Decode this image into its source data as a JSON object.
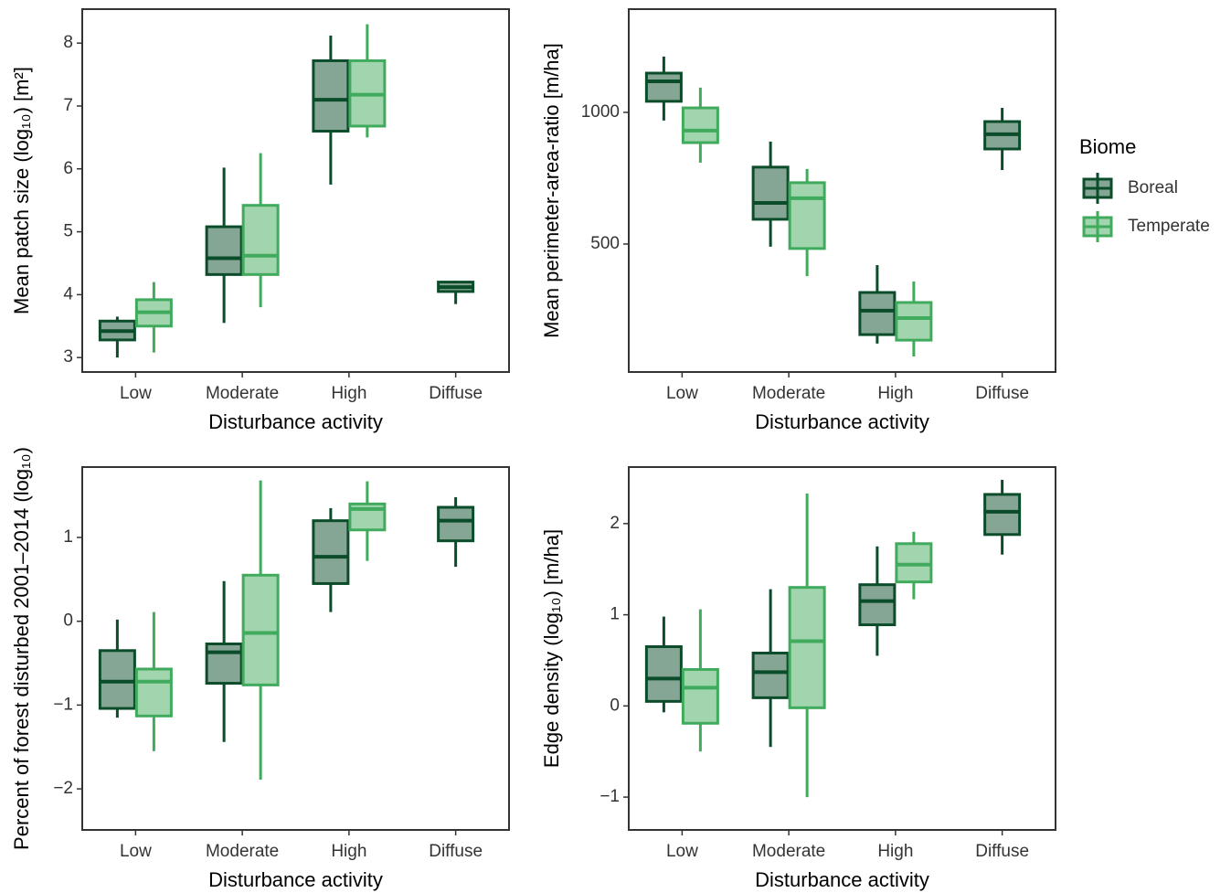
{
  "chart_data": [
    {
      "type": "box",
      "y_label": "Mean patch size (log₁₀) [m²]",
      "x_label": "Disturbance activity",
      "categories": [
        "Low",
        "Moderate",
        "High",
        "Diffuse"
      ],
      "ylim": [
        2.77,
        8.54
      ],
      "yticks": [
        3,
        4,
        5,
        6,
        7,
        8
      ],
      "series": [
        {
          "name": "Boreal",
          "color": "#0b4d2a",
          "boxes": [
            {
              "min": 3.0,
              "q1": 3.28,
              "median": 3.42,
              "q3": 3.58,
              "max": 3.65
            },
            {
              "min": 3.55,
              "q1": 4.32,
              "median": 4.58,
              "q3": 5.08,
              "max": 6.02
            },
            {
              "min": 5.75,
              "q1": 6.6,
              "median": 7.1,
              "q3": 7.72,
              "max": 8.12
            },
            {
              "min": 3.85,
              "q1": 4.05,
              "median": 4.12,
              "q3": 4.2,
              "max": 4.22
            }
          ]
        },
        {
          "name": "Temperate",
          "color": "#41ab5d",
          "boxes": [
            {
              "min": 3.08,
              "q1": 3.5,
              "median": 3.72,
              "q3": 3.92,
              "max": 4.2
            },
            {
              "min": 3.8,
              "q1": 4.32,
              "median": 4.62,
              "q3": 5.42,
              "max": 6.25
            },
            {
              "min": 6.5,
              "q1": 6.68,
              "median": 7.18,
              "q3": 7.72,
              "max": 8.3
            },
            null
          ]
        }
      ]
    },
    {
      "type": "box",
      "y_label": "Mean perimeter-area-ratio [m/ha]",
      "x_label": "Disturbance activity",
      "categories": [
        "Low",
        "Moderate",
        "High",
        "Diffuse"
      ],
      "ylim": [
        14,
        1392
      ],
      "yticks": [
        500,
        1000
      ],
      "legend_title": "Biome",
      "series": [
        {
          "name": "Boreal",
          "color": "#0b4d2a",
          "boxes": [
            {
              "min": 969,
              "q1": 1042,
              "median": 1118,
              "q3": 1149,
              "max": 1212
            },
            {
              "min": 490,
              "q1": 594,
              "median": 656,
              "q3": 792,
              "max": 889
            },
            {
              "min": 122,
              "q1": 156,
              "median": 247,
              "q3": 316,
              "max": 420
            },
            {
              "min": 781,
              "q1": 861,
              "median": 917,
              "q3": 965,
              "max": 1017
            }
          ]
        },
        {
          "name": "Temperate",
          "color": "#41ab5d",
          "boxes": [
            {
              "min": 809,
              "q1": 885,
              "median": 931,
              "q3": 1017,
              "max": 1094
            },
            {
              "min": 378,
              "q1": 483,
              "median": 674,
              "q3": 733,
              "max": 785
            },
            {
              "min": 73,
              "q1": 135,
              "median": 219,
              "q3": 278,
              "max": 358
            },
            null
          ]
        }
      ]
    },
    {
      "type": "box",
      "y_label": "Percent of forest disturbed 2001–2014 (log₁₀)",
      "x_label": "Disturbance activity",
      "categories": [
        "Low",
        "Moderate",
        "High",
        "Diffuse"
      ],
      "ylim": [
        -2.49,
        1.84
      ],
      "yticks": [
        {
          "value": -2,
          "label": "−2"
        },
        {
          "value": -1,
          "label": "−1"
        },
        0,
        1
      ],
      "series": [
        {
          "name": "Boreal",
          "color": "#0b4d2a",
          "boxes": [
            {
              "min": -1.15,
              "q1": -1.04,
              "median": -0.72,
              "q3": -0.35,
              "max": 0.02
            },
            {
              "min": -1.44,
              "q1": -0.74,
              "median": -0.37,
              "q3": -0.27,
              "max": 0.48
            },
            {
              "min": 0.11,
              "q1": 0.45,
              "median": 0.77,
              "q3": 1.2,
              "max": 1.35
            },
            {
              "min": 0.65,
              "q1": 0.96,
              "median": 1.2,
              "q3": 1.36,
              "max": 1.48
            }
          ]
        },
        {
          "name": "Temperate",
          "color": "#41ab5d",
          "boxes": [
            {
              "min": -1.55,
              "q1": -1.13,
              "median": -0.72,
              "q3": -0.57,
              "max": 0.11
            },
            {
              "min": -1.89,
              "q1": -0.76,
              "median": -0.14,
              "q3": 0.55,
              "max": 1.68
            },
            {
              "min": 0.72,
              "q1": 1.09,
              "median": 1.34,
              "q3": 1.4,
              "max": 1.67
            },
            null
          ]
        }
      ]
    },
    {
      "type": "box",
      "y_label": "Edge density (log₁₀) [m/ha]",
      "x_label": "Disturbance activity",
      "categories": [
        "Low",
        "Moderate",
        "High",
        "Diffuse"
      ],
      "ylim": [
        -1.36,
        2.62
      ],
      "yticks": [
        {
          "value": -1,
          "label": "−1"
        },
        0,
        1,
        2
      ],
      "series": [
        {
          "name": "Boreal",
          "color": "#0b4d2a",
          "boxes": [
            {
              "min": -0.07,
              "q1": 0.05,
              "median": 0.3,
              "q3": 0.65,
              "max": 0.98
            },
            {
              "min": -0.45,
              "q1": 0.09,
              "median": 0.37,
              "q3": 0.58,
              "max": 1.28
            },
            {
              "min": 0.55,
              "q1": 0.89,
              "median": 1.15,
              "q3": 1.33,
              "max": 1.75
            },
            {
              "min": 1.66,
              "q1": 1.88,
              "median": 2.13,
              "q3": 2.32,
              "max": 2.48
            }
          ]
        },
        {
          "name": "Temperate",
          "color": "#41ab5d",
          "boxes": [
            {
              "min": -0.5,
              "q1": -0.19,
              "median": 0.2,
              "q3": 0.4,
              "max": 1.06
            },
            {
              "min": -1.0,
              "q1": -0.02,
              "median": 0.71,
              "q3": 1.3,
              "max": 2.33
            },
            {
              "min": 1.17,
              "q1": 1.36,
              "median": 1.55,
              "q3": 1.78,
              "max": 1.91
            },
            null
          ]
        }
      ]
    }
  ]
}
